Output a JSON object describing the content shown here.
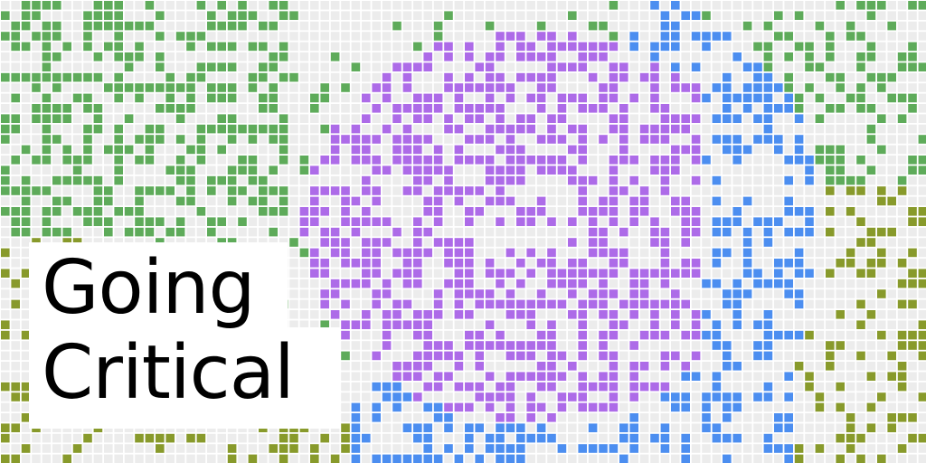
{
  "title": {
    "line1": "Going",
    "line2": "Critical"
  },
  "palette": {
    "empty": "#ececec",
    "olive": "#889a2b",
    "green": "#5eab5a",
    "purple": "#ad6be8",
    "blue": "#4c8ef0"
  }
}
